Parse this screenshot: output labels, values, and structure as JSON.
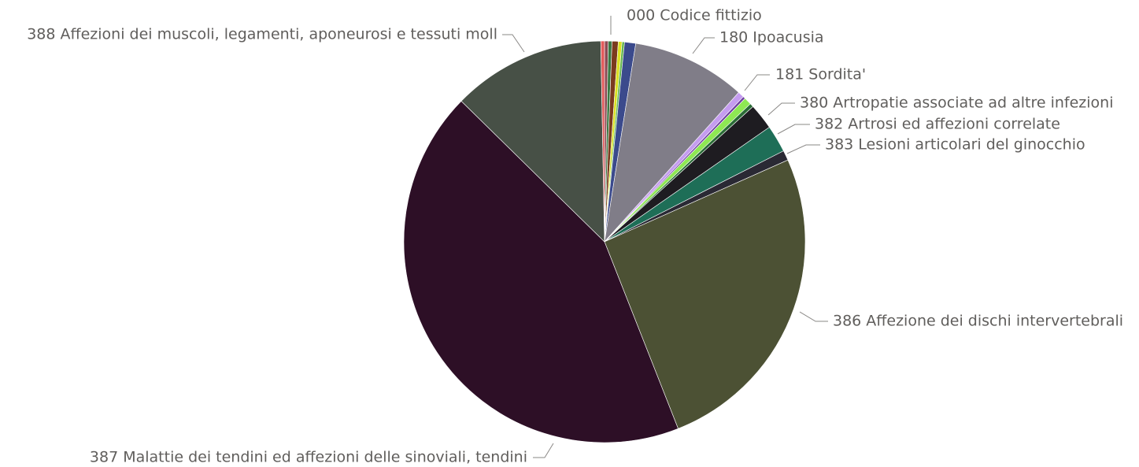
{
  "chart_data": {
    "type": "pie",
    "title": "",
    "slices": [
      {
        "label": "000 Codice fittizio",
        "value": 0.3,
        "color": "#8e4a54"
      },
      {
        "label": "",
        "value": 0.3,
        "color": "#3a7a44"
      },
      {
        "label": "",
        "value": 0.5,
        "color": "#7a3b1e"
      },
      {
        "label": "",
        "value": 0.3,
        "color": "#d9e021"
      },
      {
        "label": "",
        "value": 0.2,
        "color": "#64b54f"
      },
      {
        "label": "",
        "value": 0.9,
        "color": "#3b4a8c"
      },
      {
        "label": "180 Ipoacusia",
        "value": 9.2,
        "color": "#807d88"
      },
      {
        "label": "181 Sordita'",
        "value": 0.5,
        "color": "#c59cf0"
      },
      {
        "label": "",
        "value": 0.2,
        "color": "#6e3fa0"
      },
      {
        "label": "",
        "value": 0.6,
        "color": "#8ee853"
      },
      {
        "label": "380 Artropatie associate ad altre infezioni",
        "value": 0.3,
        "color": "#2a6b36"
      },
      {
        "label": "382 Artrosi ed affezioni correlate",
        "value": 2.1,
        "color": "#1e1c21"
      },
      {
        "label": "",
        "value": 2.2,
        "color": "#1e6e57"
      },
      {
        "label": "383 Lesioni articolari del ginocchio",
        "value": 0.8,
        "color": "#2a2934"
      },
      {
        "label": "386 Affezione dei dischi intervertebrali",
        "value": 25.8,
        "color": "#4c5134"
      },
      {
        "label": "387 Malattie dei tendini ed affezioni delle sinoviali, tendini",
        "value": 43.5,
        "color": "#2d0f26"
      },
      {
        "label": "388 Affezioni dei muscoli, legamenti, aponeurosi e tessuti moll",
        "value": 12.4,
        "color": "#475046"
      },
      {
        "label": "",
        "value": 0.3,
        "color": "#e25c5c"
      }
    ],
    "legend": "none",
    "labels": "outside with leader lines"
  }
}
